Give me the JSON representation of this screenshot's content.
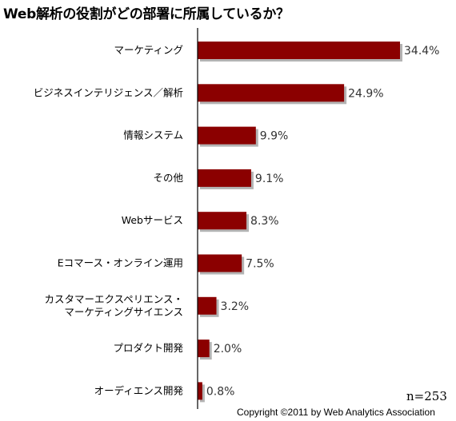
{
  "chart_data": {
    "type": "bar",
    "orientation": "horizontal",
    "title": "Web解析の役割がどの部署に所属しているか？",
    "categories": [
      [
        "マーケティング"
      ],
      [
        "ビジネスインテリジェンス／解析"
      ],
      [
        "情報システム"
      ],
      [
        "その他"
      ],
      [
        "Webサービス"
      ],
      [
        "Eコマース・オンライン運用"
      ],
      [
        "カスタマーエクスペリエンス・",
        "マーケティングサイエンス"
      ],
      [
        "プロダクト開発"
      ],
      [
        "オーディエンス開発"
      ]
    ],
    "values": [
      34.4,
      24.9,
      9.9,
      9.1,
      8.3,
      7.5,
      3.2,
      2.0,
      0.8
    ],
    "value_labels": [
      "34.4%",
      "24.9%",
      "9.9%",
      "9.1%",
      "8.3%",
      "7.5%",
      "3.2%",
      "2.0%",
      "0.8%"
    ],
    "xlim": [
      0,
      34.4
    ],
    "grid": false,
    "bar_color": "#8b0000",
    "shadow_color": "#b3b3b3"
  },
  "annotations": {
    "sample_size": "n=253",
    "copyright": "Copyright ©2011 by Web Analytics Association"
  }
}
